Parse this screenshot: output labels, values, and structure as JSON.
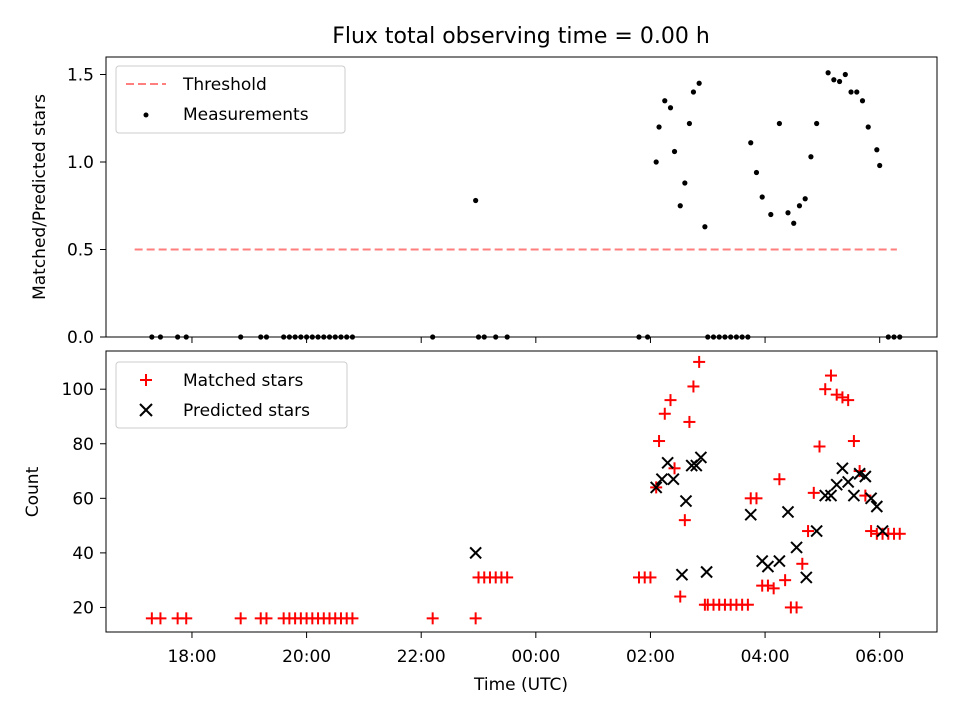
{
  "chart_data": [
    {
      "type": "scatter",
      "title": "Flux total observing time = 0.00 h",
      "xlabel": "",
      "ylabel": "Matched/Predicted stars",
      "ylim": [
        0,
        1.6
      ],
      "yticks": [
        "0.0",
        "0.5",
        "1.0",
        "1.5"
      ],
      "legend_position": "top-left",
      "grid": false,
      "threshold": {
        "name": "Threshold",
        "value": 0.5,
        "x_range": [
          17.0,
          30.3
        ],
        "color": "#ff7f7f",
        "style": "dashed"
      },
      "series": [
        {
          "name": "Measurements",
          "color": "#000000",
          "marker": "dot",
          "x": [
            17.3,
            17.45,
            17.75,
            17.9,
            18.85,
            19.2,
            19.3,
            19.6,
            19.7,
            19.8,
            19.9,
            20.0,
            20.1,
            20.2,
            20.3,
            20.4,
            20.5,
            20.6,
            20.7,
            20.8,
            22.2,
            22.95,
            23.0,
            23.1,
            23.3,
            23.5,
            25.8,
            25.95,
            26.1,
            26.15,
            26.25,
            26.35,
            26.42,
            26.52,
            26.6,
            26.68,
            26.75,
            26.85,
            26.95,
            27.0,
            27.1,
            27.2,
            27.3,
            27.4,
            27.5,
            27.6,
            27.7,
            27.75,
            27.85,
            27.95,
            28.1,
            28.25,
            28.4,
            28.5,
            28.6,
            28.7,
            28.8,
            28.9,
            29.1,
            29.2,
            29.3,
            29.4,
            29.5,
            29.6,
            29.7,
            29.8,
            29.95,
            30.0,
            30.15,
            30.25,
            30.35
          ],
          "y": [
            0,
            0,
            0,
            0,
            0,
            0,
            0,
            0,
            0,
            0,
            0,
            0,
            0,
            0,
            0,
            0,
            0,
            0,
            0,
            0,
            0,
            0.78,
            0,
            0,
            0,
            0,
            0,
            0,
            1.0,
            1.2,
            1.35,
            1.31,
            1.06,
            0.75,
            0.88,
            1.22,
            1.4,
            1.45,
            0.63,
            0,
            0,
            0,
            0,
            0,
            0,
            0,
            0,
            1.11,
            0.94,
            0.8,
            0.7,
            1.22,
            0.71,
            0.65,
            0.75,
            0.79,
            1.03,
            1.22,
            1.51,
            1.47,
            1.46,
            1.5,
            1.4,
            1.4,
            1.35,
            1.2,
            1.07,
            0.98,
            0,
            0,
            0
          ]
        }
      ]
    },
    {
      "type": "scatter",
      "title": "",
      "xlabel": "Time (UTC)",
      "ylabel": "Count",
      "ylim": [
        11,
        114
      ],
      "yticks": [
        "20",
        "40",
        "60",
        "80",
        "100"
      ],
      "xlim": [
        16.5,
        31.0
      ],
      "xticks": [
        "18:00",
        "20:00",
        "22:00",
        "00:00",
        "02:00",
        "04:00",
        "06:00"
      ],
      "legend_position": "top-left",
      "grid": false,
      "series": [
        {
          "name": "Matched stars",
          "color": "#ff0000",
          "marker": "plus",
          "x": [
            17.3,
            17.45,
            17.75,
            17.9,
            18.85,
            19.2,
            19.3,
            19.6,
            19.7,
            19.8,
            19.9,
            20.0,
            20.1,
            20.2,
            20.3,
            20.4,
            20.5,
            20.6,
            20.7,
            20.8,
            22.2,
            22.95,
            23.0,
            23.1,
            23.2,
            23.3,
            23.4,
            23.5,
            25.8,
            25.9,
            26.0,
            26.1,
            26.15,
            26.25,
            26.35,
            26.42,
            26.52,
            26.6,
            26.68,
            26.75,
            26.85,
            26.95,
            27.0,
            27.1,
            27.2,
            27.3,
            27.4,
            27.5,
            27.6,
            27.7,
            27.75,
            27.85,
            27.95,
            28.05,
            28.15,
            28.25,
            28.35,
            28.45,
            28.55,
            28.65,
            28.75,
            28.85,
            28.95,
            29.05,
            29.15,
            29.25,
            29.35,
            29.45,
            29.55,
            29.65,
            29.75,
            29.85,
            29.95,
            30.05,
            30.15,
            30.25,
            30.35
          ],
          "y": [
            16,
            16,
            16,
            16,
            16,
            16,
            16,
            16,
            16,
            16,
            16,
            16,
            16,
            16,
            16,
            16,
            16,
            16,
            16,
            16,
            16,
            16,
            31,
            31,
            31,
            31,
            31,
            31,
            31,
            31,
            31,
            64,
            81,
            91,
            96,
            71,
            24,
            52,
            88,
            101,
            110,
            21,
            21,
            21,
            21,
            21,
            21,
            21,
            21,
            21,
            60,
            60,
            28,
            28,
            27,
            67,
            30,
            20,
            20,
            36,
            48,
            62,
            79,
            100,
            105,
            98,
            97,
            96,
            81,
            70,
            61,
            48,
            47,
            47,
            47,
            47,
            47
          ]
        },
        {
          "name": "Predicted stars",
          "color": "#000000",
          "marker": "x",
          "x": [
            22.95,
            26.1,
            26.2,
            26.3,
            26.4,
            26.55,
            26.62,
            26.72,
            26.8,
            26.88,
            26.98,
            27.75,
            27.95,
            28.05,
            28.25,
            28.4,
            28.55,
            28.72,
            28.9,
            29.05,
            29.15,
            29.25,
            29.35,
            29.45,
            29.55,
            29.65,
            29.75,
            29.85,
            29.95,
            30.05
          ],
          "y": [
            40,
            64,
            67,
            73,
            67,
            32,
            59,
            72,
            72,
            75,
            33,
            54,
            37,
            35,
            37,
            55,
            42,
            31,
            48,
            61,
            61,
            65,
            71,
            66,
            61,
            69,
            68,
            60,
            57,
            48
          ]
        }
      ]
    }
  ]
}
